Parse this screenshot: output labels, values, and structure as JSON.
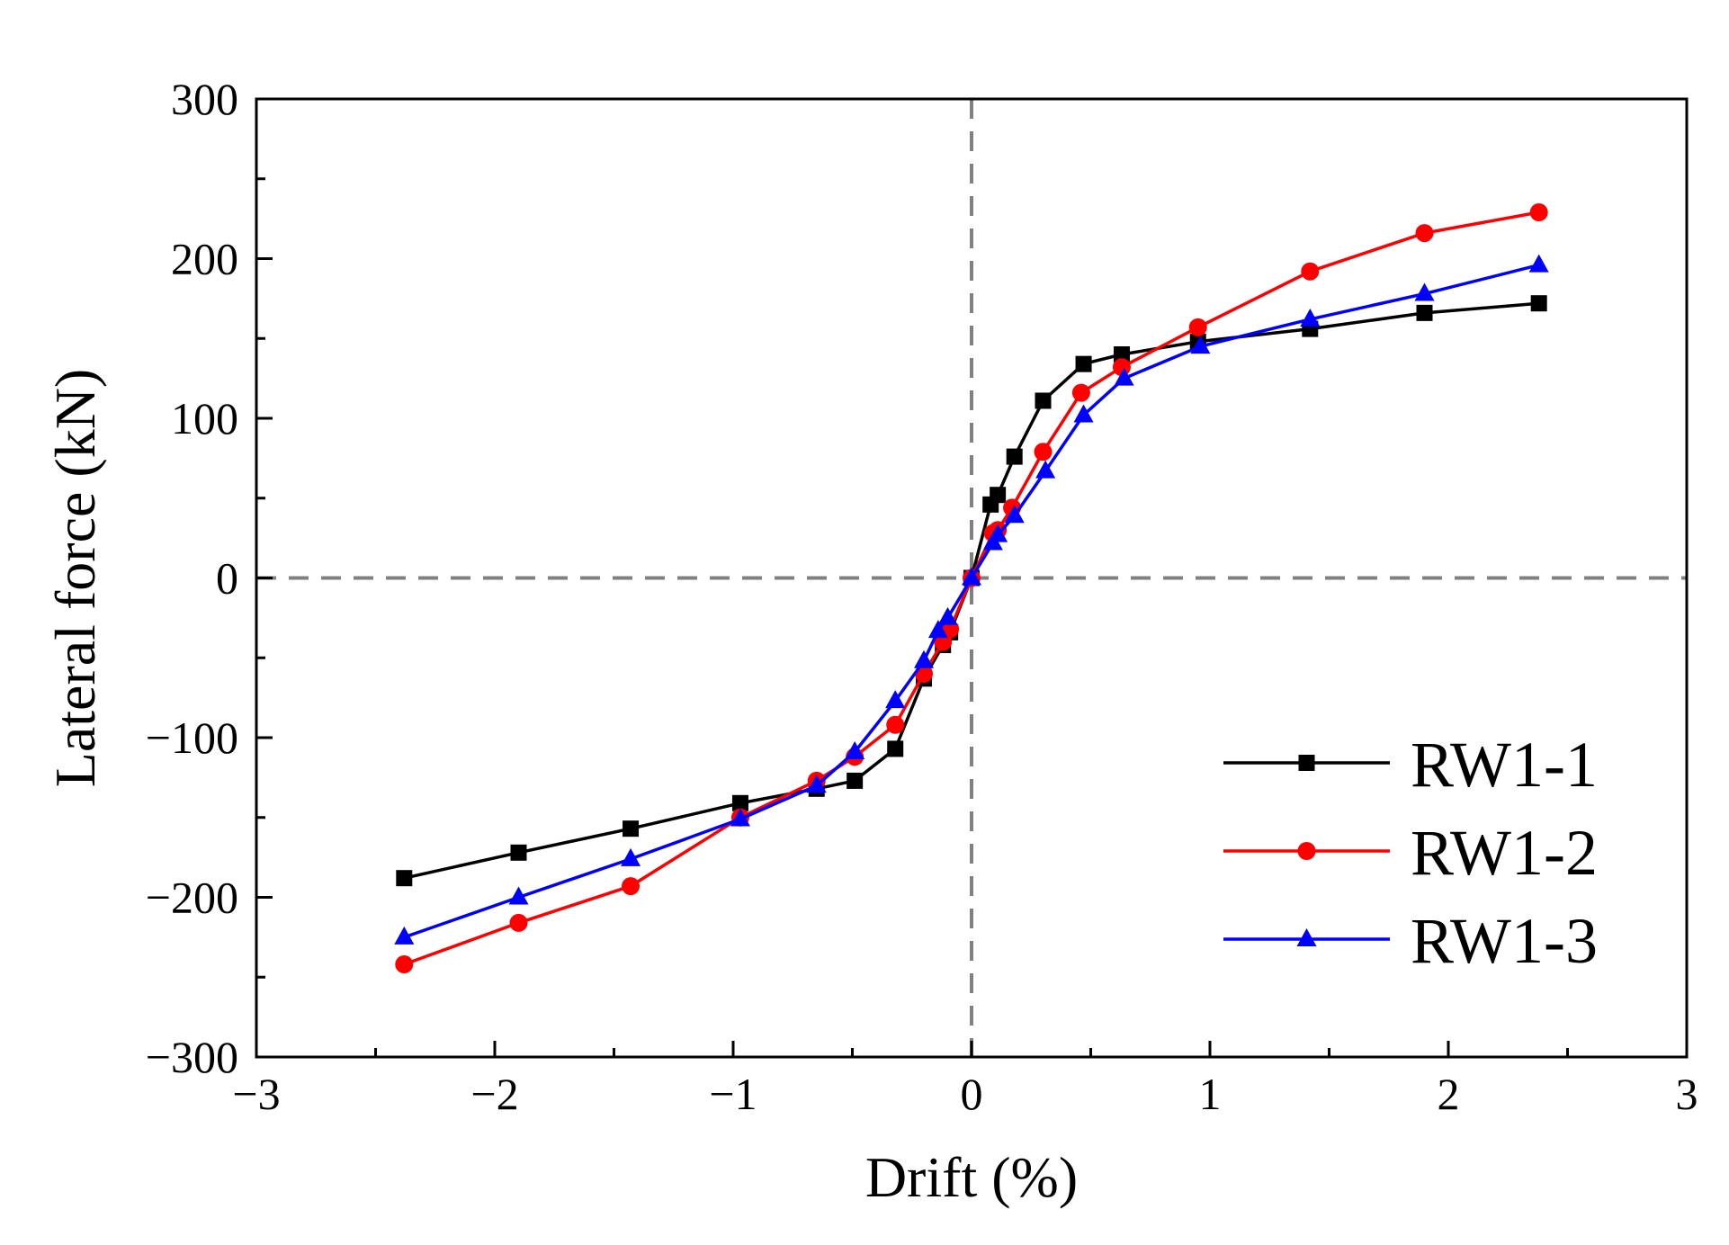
{
  "chart_data": {
    "type": "line",
    "title": "",
    "xlabel": "Drift (%)",
    "ylabel": "Lateral force (kN)",
    "xlim": [
      -3,
      3
    ],
    "ylim": [
      -300,
      300
    ],
    "xticks": [
      -3,
      -2,
      -1,
      0,
      1,
      2,
      3
    ],
    "yticks": [
      -300,
      -200,
      -100,
      0,
      100,
      200,
      300
    ],
    "xtick_labels": [
      "−3",
      "−2",
      "−1",
      "0",
      "1",
      "2",
      "3"
    ],
    "ytick_labels": [
      "−300",
      "−200",
      "−100",
      "0",
      "100",
      "200",
      "300"
    ],
    "grid": false,
    "reference_lines": {
      "x": 0,
      "y": 0,
      "style": "dashed",
      "color": "#808080"
    },
    "legend_position": "bottom-right",
    "series": [
      {
        "name": "RW1-1",
        "color": "#000000",
        "marker": "square",
        "points": [
          [
            -2.38,
            -188
          ],
          [
            -1.9,
            -172
          ],
          [
            -1.43,
            -157
          ],
          [
            -0.97,
            -141
          ],
          [
            -0.65,
            -132
          ],
          [
            -0.49,
            -127
          ],
          [
            -0.32,
            -107
          ],
          [
            -0.2,
            -63
          ],
          [
            -0.12,
            -42
          ],
          [
            -0.09,
            -34
          ],
          [
            0,
            0
          ],
          [
            0.08,
            46
          ],
          [
            0.11,
            52
          ],
          [
            0.18,
            76
          ],
          [
            0.3,
            111
          ],
          [
            0.47,
            134
          ],
          [
            0.63,
            140
          ],
          [
            0.95,
            148
          ],
          [
            1.42,
            156
          ],
          [
            1.9,
            166
          ],
          [
            2.38,
            172
          ]
        ]
      },
      {
        "name": "RW1-2",
        "color": "#ff0000",
        "marker": "circle",
        "points": [
          [
            -2.38,
            -242
          ],
          [
            -1.9,
            -216
          ],
          [
            -1.43,
            -193
          ],
          [
            -0.97,
            -150
          ],
          [
            -0.65,
            -127
          ],
          [
            -0.49,
            -112
          ],
          [
            -0.32,
            -92
          ],
          [
            -0.2,
            -60
          ],
          [
            -0.12,
            -40
          ],
          [
            -0.09,
            -32
          ],
          [
            0,
            0
          ],
          [
            0.09,
            28
          ],
          [
            0.11,
            30
          ],
          [
            0.17,
            44
          ],
          [
            0.3,
            79
          ],
          [
            0.46,
            116
          ],
          [
            0.63,
            132
          ],
          [
            0.95,
            157
          ],
          [
            1.42,
            192
          ],
          [
            1.9,
            216
          ],
          [
            2.38,
            229
          ]
        ]
      },
      {
        "name": "RW1-3",
        "color": "#0000ff",
        "marker": "triangle",
        "points": [
          [
            -2.38,
            -225
          ],
          [
            -1.9,
            -200
          ],
          [
            -1.43,
            -176
          ],
          [
            -0.97,
            -151
          ],
          [
            -0.65,
            -130
          ],
          [
            -0.49,
            -109
          ],
          [
            -0.32,
            -77
          ],
          [
            -0.2,
            -52
          ],
          [
            -0.14,
            -33
          ],
          [
            -0.1,
            -25
          ],
          [
            0,
            0
          ],
          [
            0.09,
            22
          ],
          [
            0.11,
            27
          ],
          [
            0.18,
            39
          ],
          [
            0.31,
            67
          ],
          [
            0.47,
            102
          ],
          [
            0.64,
            125
          ],
          [
            0.96,
            145
          ],
          [
            1.42,
            162
          ],
          [
            1.9,
            178
          ],
          [
            2.38,
            196
          ]
        ]
      }
    ]
  }
}
